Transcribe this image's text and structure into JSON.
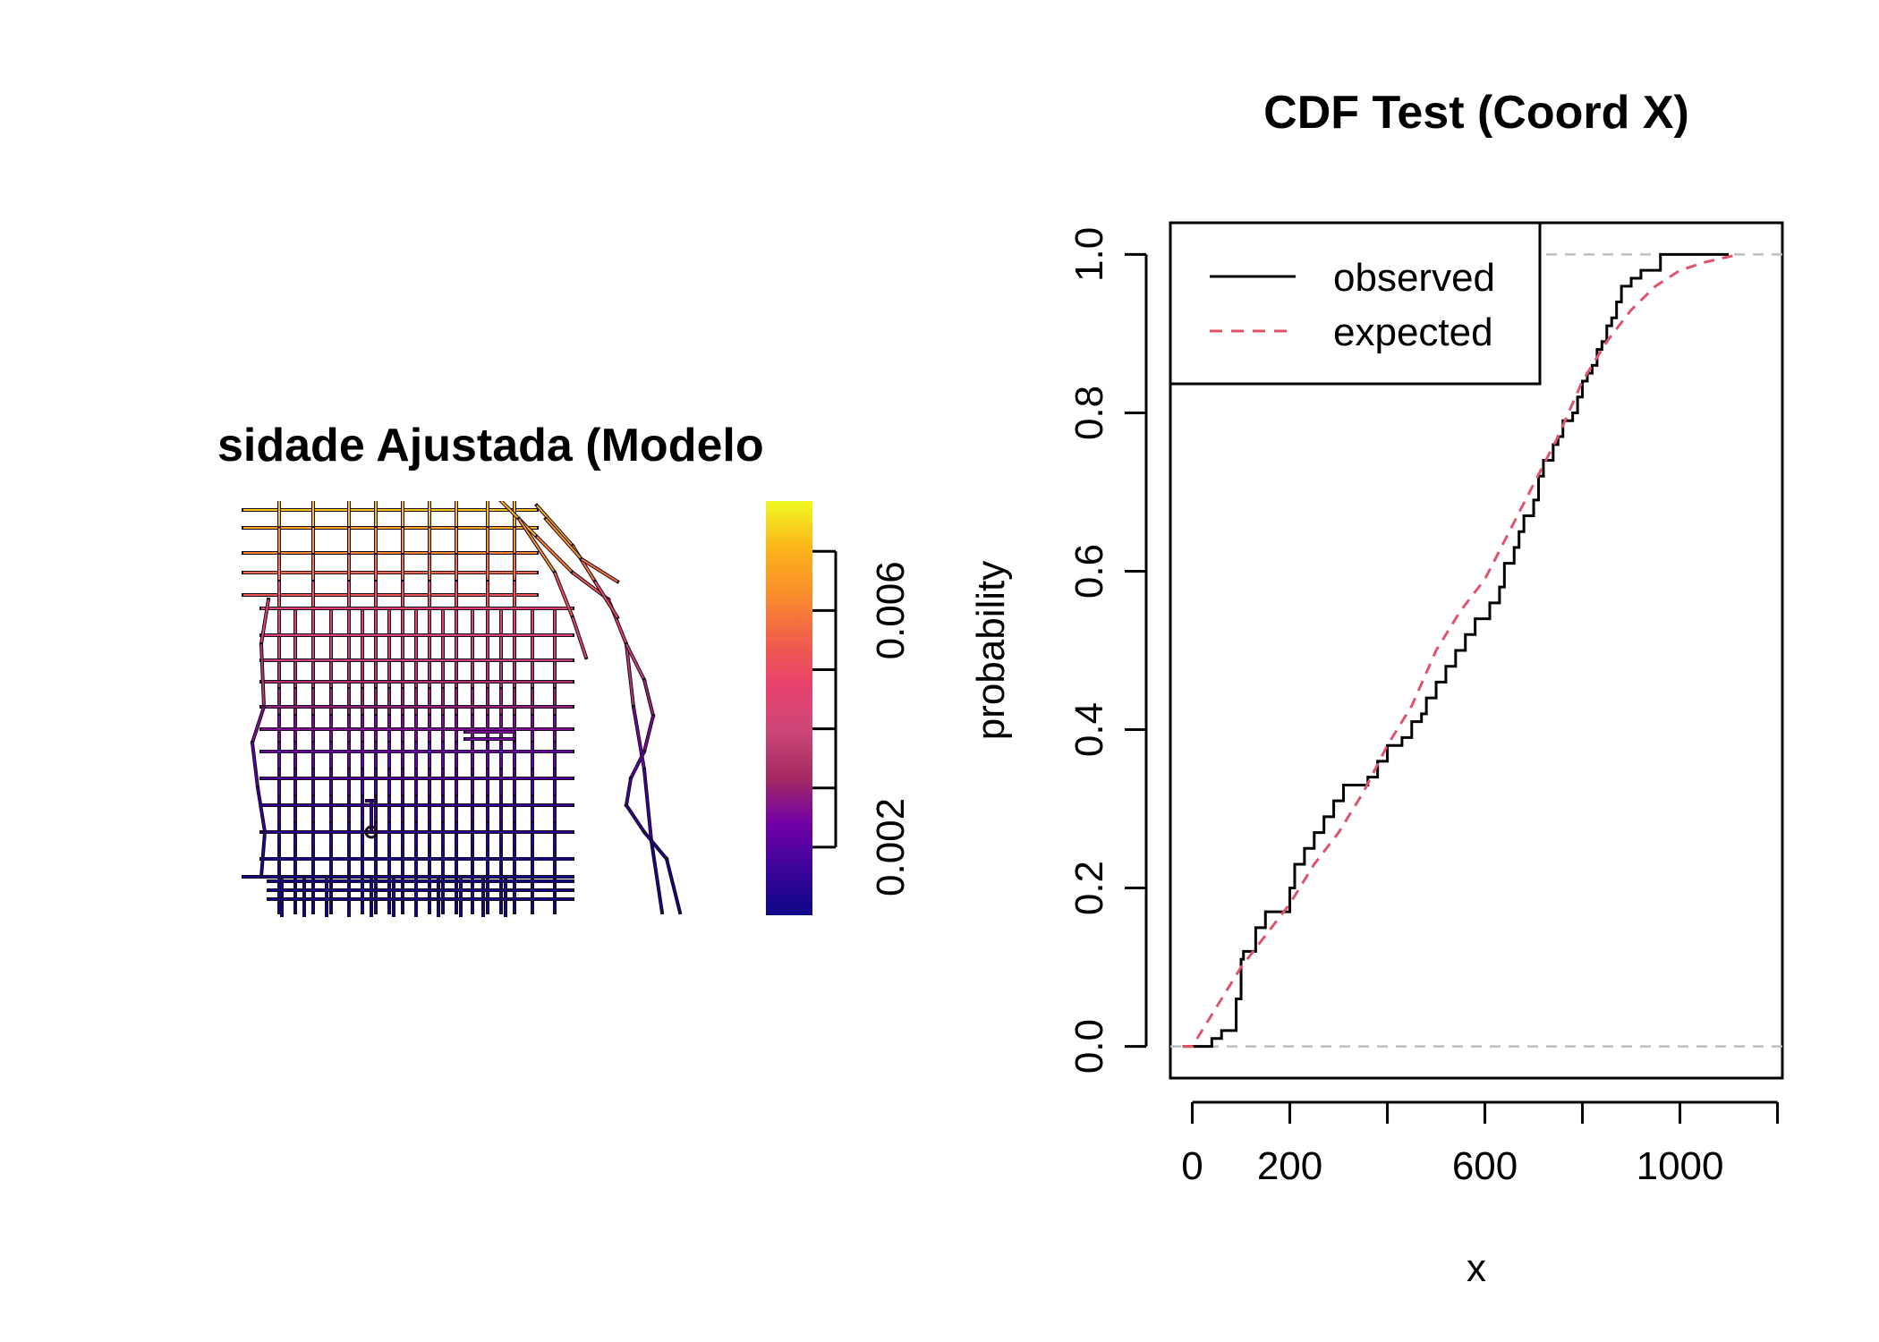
{
  "left_panel": {
    "title": "sidade Ajustada (Modelo",
    "colorbar": {
      "ticks": [
        "0.002",
        "0.006"
      ],
      "tick_values": [
        0.002,
        0.006
      ],
      "range": [
        0.00085,
        0.00785
      ],
      "colors": [
        "#0d0887",
        "#3b049a",
        "#7201a8",
        "#a52c60",
        "#cc4778",
        "#e7416b",
        "#f2604a",
        "#f98e2b",
        "#fbb61a",
        "#f0f921"
      ]
    }
  },
  "chart_data": {
    "type": "line",
    "title": "CDF Test (Coord X)",
    "xlabel": "x",
    "ylabel": "probability",
    "xlim": [
      -45,
      1210
    ],
    "ylim": [
      -0.04,
      1.04
    ],
    "x_ticks": [
      0,
      200,
      600,
      1000
    ],
    "x_tick_labels": [
      "0",
      "200",
      "600",
      "1000"
    ],
    "x_minor_ticks": [
      0,
      200,
      400,
      600,
      800,
      1000,
      1200
    ],
    "y_ticks": [
      0.0,
      0.2,
      0.4,
      0.6,
      0.8,
      1.0
    ],
    "y_tick_labels": [
      "0.0",
      "0.2",
      "0.4",
      "0.6",
      "0.8",
      "1.0"
    ],
    "reference_lines": [
      0,
      1
    ],
    "legend": {
      "position": "top-left",
      "entries": [
        {
          "label": "observed",
          "style": "solid",
          "color": "#000000"
        },
        {
          "label": "expected",
          "style": "dashed",
          "color": "#df536b"
        }
      ]
    },
    "series": [
      {
        "name": "observed",
        "color": "#000000",
        "step": true,
        "x": [
          -20,
          40,
          60,
          90,
          100,
          105,
          130,
          150,
          200,
          210,
          230,
          250,
          270,
          290,
          310,
          340,
          360,
          380,
          400,
          430,
          450,
          470,
          480,
          500,
          520,
          540,
          560,
          580,
          600,
          610,
          630,
          640,
          660,
          670,
          680,
          700,
          710,
          720,
          740,
          750,
          760,
          780,
          790,
          800,
          810,
          820,
          830,
          840,
          850,
          860,
          870,
          880,
          900,
          920,
          960,
          1000,
          1100
        ],
        "y": [
          0.0,
          0.01,
          0.02,
          0.06,
          0.11,
          0.12,
          0.15,
          0.17,
          0.2,
          0.23,
          0.25,
          0.27,
          0.29,
          0.31,
          0.33,
          0.33,
          0.34,
          0.36,
          0.38,
          0.39,
          0.41,
          0.42,
          0.44,
          0.46,
          0.48,
          0.5,
          0.52,
          0.54,
          0.54,
          0.56,
          0.58,
          0.61,
          0.63,
          0.65,
          0.67,
          0.69,
          0.72,
          0.74,
          0.76,
          0.77,
          0.79,
          0.8,
          0.82,
          0.84,
          0.85,
          0.86,
          0.88,
          0.89,
          0.91,
          0.92,
          0.94,
          0.96,
          0.97,
          0.98,
          1.0,
          1.0,
          1.0
        ]
      },
      {
        "name": "expected",
        "color": "#df536b",
        "step": false,
        "x": [
          -20,
          0,
          50,
          100,
          150,
          200,
          250,
          300,
          350,
          400,
          450,
          500,
          550,
          600,
          650,
          700,
          750,
          800,
          850,
          900,
          950,
          1000,
          1050,
          1120
        ],
        "y": [
          0.0,
          0.0,
          0.05,
          0.1,
          0.14,
          0.18,
          0.23,
          0.27,
          0.32,
          0.38,
          0.43,
          0.5,
          0.55,
          0.59,
          0.65,
          0.71,
          0.77,
          0.84,
          0.89,
          0.93,
          0.96,
          0.98,
          0.99,
          1.0
        ]
      }
    ]
  }
}
